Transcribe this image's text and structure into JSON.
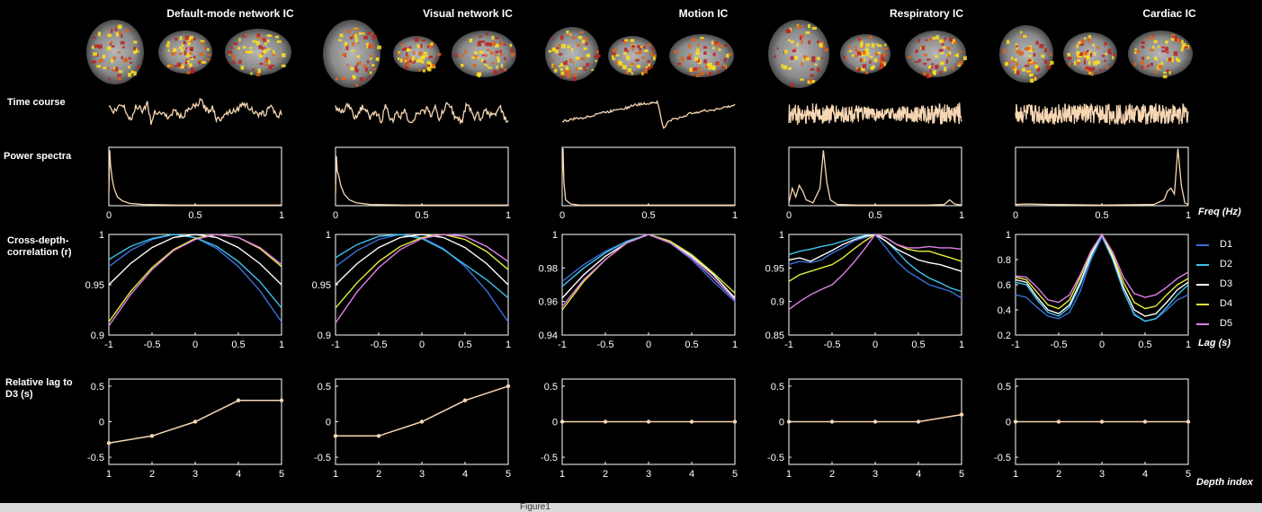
{
  "figure": {
    "columns": [
      "Default-mode network IC",
      "Visual network IC",
      "Motion IC",
      "Respiratory IC",
      "Cardiac IC"
    ],
    "row_labels": {
      "time_course": "Time course",
      "power_spectra": "Power spectra",
      "cross_depth": "Cross-depth-\ncorrelation (r)",
      "relative_lag": "Relative lag to\nD3 (s)"
    },
    "axis_units": {
      "freq": "Freq (Hz)",
      "lag": "Lag (s)",
      "depth": "Depth index"
    },
    "caption": "Figure1"
  },
  "colors": {
    "background": "#000000",
    "trace": "#f7d6b3",
    "axis": "#ffffff",
    "D1": "#3a6fd8",
    "D2": "#3ec3ec",
    "D3": "#ffffff",
    "D4": "#e4ee3a",
    "D5": "#e080e8"
  },
  "chart_data": [
    {
      "type": "line",
      "title": "Power spectra",
      "xlabel": "Freq (Hz)",
      "xlim": [
        0,
        1
      ],
      "xticks": [
        "0",
        "0.5",
        "1"
      ],
      "series": [
        {
          "x": [
            0,
            0.005,
            0.01,
            0.02,
            0.03,
            0.05,
            0.08,
            0.12,
            0.2,
            0.4,
            0.7,
            1.0
          ],
          "values": [
            0.2,
            0.95,
            0.7,
            0.45,
            0.3,
            0.15,
            0.08,
            0.04,
            0.02,
            0.01,
            0.01,
            0.01
          ]
        },
        {
          "x": [
            0,
            0.005,
            0.01,
            0.02,
            0.03,
            0.05,
            0.08,
            0.12,
            0.2,
            0.4,
            0.7,
            1.0
          ],
          "values": [
            0.2,
            0.85,
            0.6,
            0.5,
            0.35,
            0.2,
            0.1,
            0.05,
            0.02,
            0.01,
            0.01,
            0.01
          ]
        },
        {
          "x": [
            0,
            0.005,
            0.01,
            0.02,
            0.05,
            0.1,
            0.3,
            0.6,
            1.0
          ],
          "values": [
            0.5,
            0.98,
            0.4,
            0.1,
            0.03,
            0.01,
            0.01,
            0.01,
            0.01
          ]
        },
        {
          "x": [
            0,
            0.02,
            0.04,
            0.06,
            0.08,
            0.1,
            0.14,
            0.18,
            0.2,
            0.22,
            0.24,
            0.28,
            0.4,
            0.6,
            0.8,
            0.9,
            0.93,
            0.96,
            1.0
          ],
          "values": [
            0.05,
            0.3,
            0.15,
            0.35,
            0.25,
            0.1,
            0.05,
            0.3,
            0.95,
            0.4,
            0.1,
            0.02,
            0.01,
            0.01,
            0.01,
            0.02,
            0.1,
            0.03,
            0.01
          ]
        },
        {
          "x": [
            0,
            0.05,
            0.2,
            0.5,
            0.8,
            0.86,
            0.88,
            0.9,
            0.92,
            0.94,
            0.96,
            0.98,
            1.0
          ],
          "values": [
            0.02,
            0.03,
            0.02,
            0.01,
            0.02,
            0.1,
            0.25,
            0.3,
            0.2,
            0.98,
            0.35,
            0.05,
            0.02
          ]
        }
      ]
    },
    {
      "type": "line",
      "title": "Cross-depth-correlation (r)",
      "xlabel": "Lag (s)",
      "xlim": [
        -1,
        1
      ],
      "xticks": [
        "-1",
        "-0.5",
        "0",
        "0.5",
        "1"
      ],
      "legend": [
        "D1",
        "D2",
        "D3",
        "D4",
        "D5"
      ],
      "legend_position": "right",
      "panels": [
        {
          "ylim": [
            0.9,
            1
          ],
          "yticks": [
            "0.9",
            "0.95",
            "1"
          ],
          "x": [
            -1,
            -0.75,
            -0.5,
            -0.25,
            0,
            0.25,
            0.5,
            0.75,
            1
          ],
          "series": [
            {
              "name": "D1",
              "values": [
                0.968,
                0.984,
                0.995,
                1.0,
                0.997,
                0.986,
                0.968,
                0.944,
                0.913
              ]
            },
            {
              "name": "D2",
              "values": [
                0.975,
                0.988,
                0.996,
                1.0,
                0.997,
                0.988,
                0.973,
                0.953,
                0.927
              ]
            },
            {
              "name": "D3",
              "values": [
                0.95,
                0.971,
                0.987,
                0.997,
                1.0,
                0.997,
                0.987,
                0.971,
                0.95
              ]
            },
            {
              "name": "D4",
              "values": [
                0.913,
                0.943,
                0.967,
                0.985,
                0.996,
                1.0,
                0.997,
                0.986,
                0.968
              ]
            },
            {
              "name": "D5",
              "values": [
                0.909,
                0.94,
                0.965,
                0.984,
                0.995,
                1.0,
                0.997,
                0.987,
                0.97
              ]
            }
          ]
        },
        {
          "ylim": [
            0.9,
            1
          ],
          "yticks": [
            "0.9",
            "0.95",
            "1"
          ],
          "x": [
            -1,
            -0.75,
            -0.5,
            -0.25,
            0,
            0.25,
            0.5,
            0.75,
            1
          ],
          "series": [
            {
              "name": "D1",
              "values": [
                0.968,
                0.984,
                0.995,
                1.0,
                0.997,
                0.986,
                0.968,
                0.944,
                0.913
              ]
            },
            {
              "name": "D2",
              "values": [
                0.977,
                0.99,
                0.998,
                1.0,
                0.996,
                0.985,
                0.97,
                0.955,
                0.937
              ]
            },
            {
              "name": "D3",
              "values": [
                0.95,
                0.971,
                0.987,
                0.997,
                1.0,
                0.997,
                0.987,
                0.971,
                0.95
              ]
            },
            {
              "name": "D4",
              "values": [
                0.927,
                0.952,
                0.973,
                0.988,
                0.997,
                1.0,
                0.995,
                0.983,
                0.965
              ]
            },
            {
              "name": "D5",
              "values": [
                0.912,
                0.943,
                0.967,
                0.985,
                0.996,
                1.0,
                0.998,
                0.988,
                0.973
              ]
            }
          ]
        },
        {
          "ylim": [
            0.94,
            1
          ],
          "yticks": [
            "0.94",
            "0.96",
            "0.98",
            "1"
          ],
          "x": [
            -1,
            -0.75,
            -0.5,
            -0.25,
            0,
            0.25,
            0.5,
            0.75,
            1
          ],
          "series": [
            {
              "name": "D1",
              "values": [
                0.972,
                0.982,
                0.99,
                0.996,
                1.0,
                0.995,
                0.985,
                0.972,
                0.96
              ]
            },
            {
              "name": "D2",
              "values": [
                0.969,
                0.98,
                0.989,
                0.996,
                1.0,
                0.996,
                0.987,
                0.976,
                0.962
              ]
            },
            {
              "name": "D3",
              "values": [
                0.962,
                0.976,
                0.987,
                0.995,
                1.0,
                0.995,
                0.987,
                0.976,
                0.962
              ]
            },
            {
              "name": "D4",
              "values": [
                0.955,
                0.972,
                0.985,
                0.995,
                1.0,
                0.996,
                0.988,
                0.977,
                0.965
              ]
            },
            {
              "name": "D5",
              "values": [
                0.957,
                0.973,
                0.985,
                0.995,
                1.0,
                0.995,
                0.986,
                0.974,
                0.961
              ]
            }
          ]
        },
        {
          "ylim": [
            0.85,
            1
          ],
          "yticks": [
            "0.85",
            "0.9",
            "0.95",
            "1"
          ],
          "x": [
            -1,
            -0.875,
            -0.75,
            -0.625,
            -0.5,
            -0.375,
            -0.25,
            -0.125,
            0,
            0.125,
            0.25,
            0.375,
            0.5,
            0.625,
            0.75,
            0.875,
            1
          ],
          "series": [
            {
              "name": "D1",
              "values": [
                0.955,
                0.96,
                0.958,
                0.962,
                0.972,
                0.98,
                0.99,
                0.995,
                1.0,
                0.98,
                0.96,
                0.945,
                0.935,
                0.925,
                0.92,
                0.915,
                0.905
              ]
            },
            {
              "name": "D2",
              "values": [
                0.97,
                0.975,
                0.978,
                0.982,
                0.985,
                0.99,
                0.995,
                0.998,
                1.0,
                0.99,
                0.975,
                0.958,
                0.945,
                0.935,
                0.928,
                0.92,
                0.915
              ]
            },
            {
              "name": "D3",
              "values": [
                0.962,
                0.965,
                0.96,
                0.968,
                0.976,
                0.985,
                0.992,
                0.997,
                1.0,
                0.99,
                0.978,
                0.97,
                0.962,
                0.958,
                0.955,
                0.95,
                0.945
              ]
            },
            {
              "name": "D4",
              "values": [
                0.93,
                0.94,
                0.945,
                0.95,
                0.955,
                0.965,
                0.978,
                0.99,
                1.0,
                0.995,
                0.985,
                0.978,
                0.975,
                0.975,
                0.97,
                0.965,
                0.96
              ]
            },
            {
              "name": "D5",
              "values": [
                0.888,
                0.9,
                0.91,
                0.918,
                0.925,
                0.94,
                0.958,
                0.978,
                1.0,
                0.995,
                0.985,
                0.98,
                0.98,
                0.982,
                0.98,
                0.98,
                0.978
              ]
            }
          ]
        },
        {
          "ylim": [
            0.2,
            1
          ],
          "yticks": [
            "0.2",
            "0.4",
            "0.6",
            "0.8",
            "1"
          ],
          "x": [
            -1,
            -0.875,
            -0.75,
            -0.625,
            -0.5,
            -0.375,
            -0.25,
            -0.125,
            0,
            0.125,
            0.25,
            0.375,
            0.5,
            0.625,
            0.75,
            0.875,
            1
          ],
          "series": [
            {
              "name": "D1",
              "values": [
                0.52,
                0.5,
                0.42,
                0.35,
                0.33,
                0.38,
                0.55,
                0.8,
                0.98,
                0.8,
                0.55,
                0.37,
                0.31,
                0.33,
                0.4,
                0.48,
                0.52
              ]
            },
            {
              "name": "D2",
              "values": [
                0.62,
                0.6,
                0.48,
                0.38,
                0.35,
                0.42,
                0.6,
                0.82,
                1.0,
                0.8,
                0.55,
                0.36,
                0.31,
                0.33,
                0.42,
                0.52,
                0.6
              ]
            },
            {
              "name": "D3",
              "values": [
                0.64,
                0.62,
                0.5,
                0.4,
                0.37,
                0.44,
                0.62,
                0.84,
                1.0,
                0.82,
                0.58,
                0.4,
                0.35,
                0.37,
                0.46,
                0.56,
                0.62
              ]
            },
            {
              "name": "D4",
              "values": [
                0.66,
                0.64,
                0.54,
                0.44,
                0.41,
                0.48,
                0.66,
                0.86,
                1.0,
                0.84,
                0.62,
                0.46,
                0.41,
                0.43,
                0.52,
                0.6,
                0.65
              ]
            },
            {
              "name": "D5",
              "values": [
                0.67,
                0.66,
                0.58,
                0.48,
                0.46,
                0.52,
                0.68,
                0.87,
                1.0,
                0.86,
                0.66,
                0.53,
                0.5,
                0.52,
                0.58,
                0.65,
                0.7
              ]
            }
          ]
        }
      ]
    },
    {
      "type": "line",
      "title": "Relative lag to D3 (s)",
      "xlabel": "Depth index",
      "x": [
        1,
        2,
        3,
        4,
        5
      ],
      "xticks": [
        "1",
        "2",
        "3",
        "4",
        "5"
      ],
      "ylim": [
        -0.6,
        0.6
      ],
      "yticks": [
        "-0.5",
        "0",
        "0.5"
      ],
      "series": [
        {
          "values": [
            -0.3,
            -0.2,
            0,
            0.3,
            0.3
          ]
        },
        {
          "values": [
            -0.2,
            -0.2,
            0,
            0.3,
            0.5
          ]
        },
        {
          "values": [
            0,
            0,
            0,
            0,
            0
          ]
        },
        {
          "values": [
            0,
            0,
            0,
            0,
            0.1
          ]
        },
        {
          "values": [
            0,
            0,
            0,
            0,
            0
          ]
        }
      ]
    },
    {
      "type": "line",
      "title": "Time course",
      "series": [
        {
          "style": "network",
          "values": [
            0.5,
            0.15,
            0.25,
            0.6,
            0.45,
            -0.1,
            -0.35,
            0.55,
            0.4,
            0.2,
            0.75,
            -0.6,
            0.2,
            0.1,
            0.05,
            -0.1,
            -0.25,
            0.35,
            -0.05,
            -0.2,
            0.05,
            0.3,
            0.45,
            0.55,
            0.85,
            0.4,
            0.1,
            0.5,
            -0.3,
            -0.35,
            0.05,
            0.1,
            0.2,
            0.25,
            0.35,
            0.7,
            0.5,
            0.35,
            0.1,
            -0.15,
            0.05,
            0.05,
            0.55,
            0.25,
            -0.15,
            0.1
          ]
        },
        {
          "style": "network",
          "values": [
            0.4,
            0.25,
            0.15,
            0.7,
            0.25,
            -0.2,
            0.1,
            0.45,
            0.2,
            -0.3,
            0.05,
            -0.05,
            -0.45,
            0.55,
            -0.15,
            -0.35,
            0.05,
            -0.2,
            0.35,
            -0.4,
            -0.45,
            -0.1,
            0.15,
            0.1,
            0.45,
            -0.15,
            0.4,
            -0.3,
            0.15,
            0.6,
            0.5,
            -0.15,
            -0.3,
            -0.45,
            0.55,
            0.35,
            -0.25,
            0.05,
            -0.4,
            0.3,
            -0.1,
            0.1,
            0.05,
            0.45,
            -0.2,
            -0.5
          ]
        },
        {
          "style": "motion",
          "values": [
            -0.45,
            -0.4,
            -0.3,
            -0.25,
            -0.2,
            -0.1,
            0.05,
            0.1,
            0.15,
            0.3,
            0.35,
            0.4,
            0.55,
            0.6,
            0.65,
            0.7,
            0.75,
            -0.9,
            -0.4,
            -0.3,
            -0.2,
            -0.05,
            0.1,
            0.15,
            0.2,
            0.25,
            0.3,
            0.4,
            0.45,
            0.55
          ]
        },
        {
          "style": "respiratory",
          "values": [
            0.5,
            0.4,
            0.1,
            -0.3,
            -0.55
          ]
        },
        {
          "style": "cardiac",
          "values": [
            0.55,
            -0.55
          ]
        }
      ]
    }
  ]
}
